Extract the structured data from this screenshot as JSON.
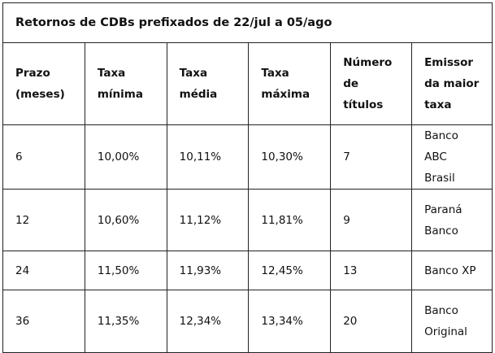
{
  "title": "Retornos de CDBs prefixados de 22/jul a 05/ago",
  "headers": [
    "Prazo (meses)",
    "Taxa mínima",
    "Taxa média",
    "Taxa máxima",
    "Número de títulos",
    "Emissor da maior taxa"
  ],
  "rows": [
    [
      "6",
      "10,00%",
      "10,11%",
      "10,30%",
      "7",
      "Banco ABC Brasil"
    ],
    [
      "12",
      "10,60%",
      "11,12%",
      "11,81%",
      "9",
      "Paraná Banco"
    ],
    [
      "24",
      "11,50%",
      "11,93%",
      "12,45%",
      "13",
      "Banco XP"
    ],
    [
      "36",
      "11,35%",
      "12,34%",
      "13,34%",
      "20",
      "Banco Original"
    ]
  ]
}
